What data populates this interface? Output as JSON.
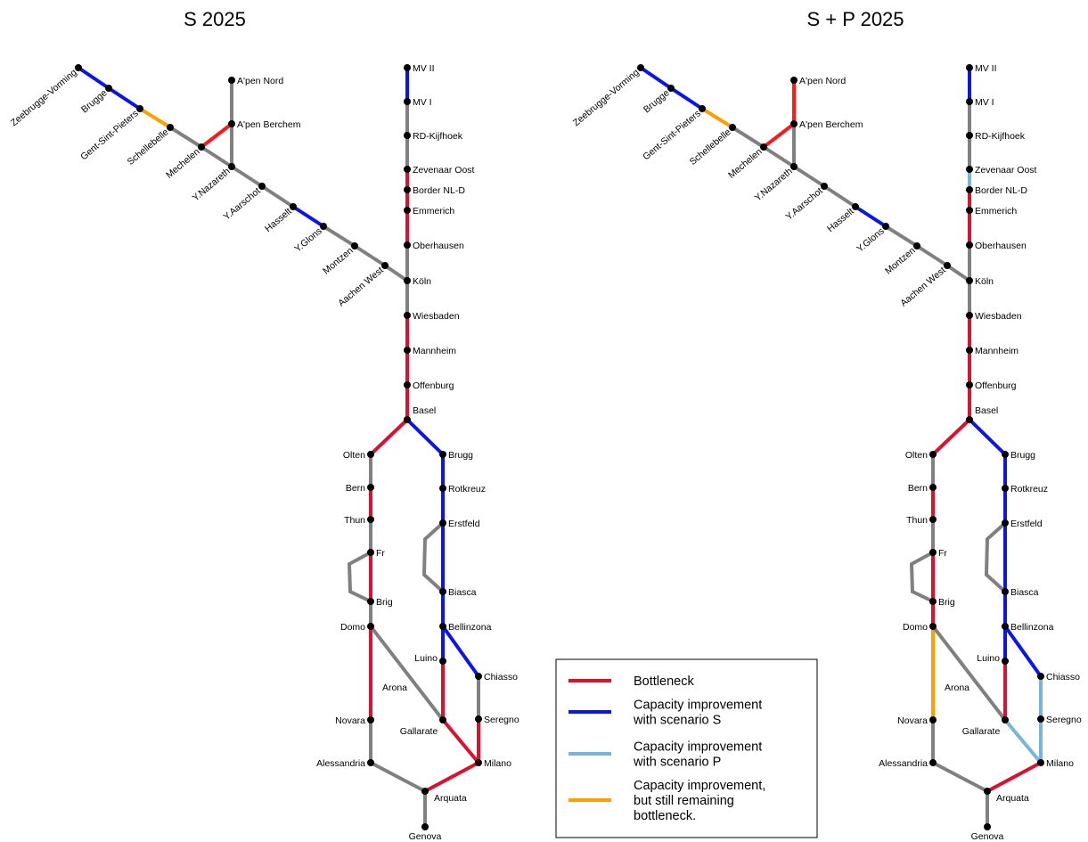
{
  "colors": {
    "bottleneck": "#d9122f",
    "improvement_s": "#0a14ec",
    "improvement_p": "#78b4dc",
    "partial": "#ffa000",
    "neutral": "#808080",
    "red": "#ff1a1a"
  },
  "legend": {
    "items": [
      {
        "key": "bottleneck",
        "label_lines": [
          "Bottleneck"
        ]
      },
      {
        "key": "improvement_s",
        "label_lines": [
          "Capacity improvement",
          "with scenario S"
        ]
      },
      {
        "key": "improvement_p",
        "label_lines": [
          "Capacity improvement",
          "with scenario P"
        ]
      },
      {
        "key": "partial",
        "label_lines": [
          "Capacity improvement,",
          "but still remaining",
          "bottleneck."
        ]
      }
    ]
  },
  "stations": {
    "zeebrugge": "Zeebrugge-Vorming",
    "brugge": "Brugge",
    "gent": "Gent-Sint-Pieters",
    "schellebelle": "Schellebelle",
    "mechelen": "Mechelen",
    "ynazareth": "Y.Nazareth",
    "yaarschot": "Y.Aarschot",
    "hasselt": "Hasselt",
    "yglons": "Y.Glons",
    "montzen": "Montzen",
    "aachen": "Aachen West",
    "apennord": "A'pen Nord",
    "apenberchem": "A'pen Berchem",
    "mv2": "MV II",
    "mv1": "MV I",
    "rd": "RD-Kijfhoek",
    "zevenaar": "Zevenaar Oost",
    "border": "Border NL-D",
    "emmerich": "Emmerich",
    "oberhausen": "Oberhausen",
    "koln": "Köln",
    "wiesbaden": "Wiesbaden",
    "mannheim": "Mannheim",
    "offenburg": "Offenburg",
    "basel": "Basel",
    "olten": "Olten",
    "bern": "Bern",
    "thun": "Thun",
    "fr": "Fr",
    "brig": "Brig",
    "domo": "Domo",
    "novara": "Novara",
    "alessandria": "Alessandria",
    "arquata": "Arquata",
    "genova": "Genova",
    "arona": "Arona",
    "gallarate": "Gallarate",
    "luino": "Luino",
    "brugg": "Brugg",
    "rotkreuz": "Rotkreuz",
    "erstfeld": "Erstfeld",
    "biasca": "Biasca",
    "bellinzona": "Bellinzona",
    "chiasso": "Chiasso",
    "seregno": "Seregno",
    "milano": "Milano"
  },
  "panels": [
    {
      "id": "s",
      "title": "S 2025",
      "segments": [
        {
          "from": "zeebrugge",
          "to": "brugge",
          "status": "improvement_s"
        },
        {
          "from": "brugge",
          "to": "gent",
          "status": "improvement_s"
        },
        {
          "from": "gent",
          "to": "schellebelle",
          "status": "partial"
        },
        {
          "from": "schellebelle",
          "to": "mechelen",
          "status": "neutral"
        },
        {
          "from": "mechelen",
          "to": "ynazareth",
          "status": "neutral"
        },
        {
          "from": "mechelen",
          "to": "apenberchem",
          "status": "red"
        },
        {
          "from": "apenberchem",
          "to": "apennord",
          "status": "neutral"
        },
        {
          "from": "apenberchem",
          "to": "ynazareth",
          "status": "neutral"
        },
        {
          "from": "ynazareth",
          "to": "yaarschot",
          "status": "neutral"
        },
        {
          "from": "yaarschot",
          "to": "hasselt",
          "status": "neutral"
        },
        {
          "from": "hasselt",
          "to": "yglons",
          "status": "improvement_s"
        },
        {
          "from": "yglons",
          "to": "montzen",
          "status": "neutral"
        },
        {
          "from": "montzen",
          "to": "aachen",
          "status": "neutral"
        },
        {
          "from": "aachen",
          "to": "koln",
          "status": "neutral"
        },
        {
          "from": "mv2",
          "to": "mv1",
          "status": "improvement_s"
        },
        {
          "from": "mv1",
          "to": "rd",
          "status": "neutral"
        },
        {
          "from": "rd",
          "to": "zevenaar",
          "status": "neutral"
        },
        {
          "from": "zevenaar",
          "to": "border",
          "status": "bottleneck"
        },
        {
          "from": "border",
          "to": "emmerich",
          "status": "bottleneck"
        },
        {
          "from": "emmerich",
          "to": "oberhausen",
          "status": "bottleneck"
        },
        {
          "from": "oberhausen",
          "to": "koln",
          "status": "neutral"
        },
        {
          "from": "koln",
          "to": "wiesbaden",
          "status": "neutral"
        },
        {
          "from": "wiesbaden",
          "to": "mannheim",
          "status": "bottleneck"
        },
        {
          "from": "mannheim",
          "to": "offenburg",
          "status": "bottleneck"
        },
        {
          "from": "offenburg",
          "to": "basel",
          "status": "bottleneck"
        },
        {
          "from": "basel",
          "to": "olten",
          "status": "bottleneck"
        },
        {
          "from": "olten",
          "to": "bern",
          "status": "neutral"
        },
        {
          "from": "bern",
          "to": "thun",
          "status": "bottleneck"
        },
        {
          "from": "thun",
          "to": "fr",
          "status": "neutral"
        },
        {
          "from": "fr",
          "to": "brig",
          "status": "bottleneck"
        },
        {
          "from": "fr",
          "to": "brig",
          "status": "neutral",
          "via": "westloop"
        },
        {
          "from": "brig",
          "to": "domo",
          "status": "neutral"
        },
        {
          "from": "domo",
          "to": "novara",
          "status": "bottleneck"
        },
        {
          "from": "novara",
          "to": "alessandria",
          "status": "neutral"
        },
        {
          "from": "alessandria",
          "to": "arquata",
          "status": "neutral"
        },
        {
          "from": "arquata",
          "to": "genova",
          "status": "neutral"
        },
        {
          "from": "arquata",
          "to": "milano",
          "status": "bottleneck"
        },
        {
          "from": "domo",
          "to": "gallarate",
          "status": "neutral"
        },
        {
          "from": "gallarate",
          "to": "milano",
          "status": "bottleneck"
        },
        {
          "from": "basel",
          "to": "brugg",
          "status": "improvement_s"
        },
        {
          "from": "brugg",
          "to": "rotkreuz",
          "status": "improvement_s"
        },
        {
          "from": "rotkreuz",
          "to": "erstfeld",
          "status": "improvement_s"
        },
        {
          "from": "erstfeld",
          "to": "biasca",
          "status": "improvement_s"
        },
        {
          "from": "erstfeld",
          "to": "biasca",
          "status": "neutral",
          "via": "eastloop"
        },
        {
          "from": "biasca",
          "to": "bellinzona",
          "status": "improvement_s"
        },
        {
          "from": "bellinzona",
          "to": "luino",
          "status": "improvement_s"
        },
        {
          "from": "luino",
          "to": "gallarate",
          "status": "bottleneck"
        },
        {
          "from": "bellinzona",
          "to": "chiasso",
          "status": "improvement_s"
        },
        {
          "from": "chiasso",
          "to": "seregno",
          "status": "neutral"
        },
        {
          "from": "seregno",
          "to": "milano",
          "status": "bottleneck"
        }
      ]
    },
    {
      "id": "sp",
      "title": "S + P 2025",
      "segments": [
        {
          "from": "zeebrugge",
          "to": "brugge",
          "status": "improvement_s"
        },
        {
          "from": "brugge",
          "to": "gent",
          "status": "improvement_s"
        },
        {
          "from": "gent",
          "to": "schellebelle",
          "status": "partial"
        },
        {
          "from": "schellebelle",
          "to": "mechelen",
          "status": "neutral"
        },
        {
          "from": "mechelen",
          "to": "ynazareth",
          "status": "neutral"
        },
        {
          "from": "mechelen",
          "to": "apenberchem",
          "status": "red"
        },
        {
          "from": "apenberchem",
          "to": "apennord",
          "status": "red"
        },
        {
          "from": "apenberchem",
          "to": "ynazareth",
          "status": "neutral"
        },
        {
          "from": "ynazareth",
          "to": "yaarschot",
          "status": "neutral"
        },
        {
          "from": "yaarschot",
          "to": "hasselt",
          "status": "neutral"
        },
        {
          "from": "hasselt",
          "to": "yglons",
          "status": "improvement_s"
        },
        {
          "from": "yglons",
          "to": "montzen",
          "status": "neutral"
        },
        {
          "from": "montzen",
          "to": "aachen",
          "status": "neutral"
        },
        {
          "from": "aachen",
          "to": "koln",
          "status": "neutral"
        },
        {
          "from": "mv2",
          "to": "mv1",
          "status": "improvement_s"
        },
        {
          "from": "mv1",
          "to": "rd",
          "status": "neutral"
        },
        {
          "from": "rd",
          "to": "zevenaar",
          "status": "neutral"
        },
        {
          "from": "zevenaar",
          "to": "border",
          "status": "improvement_p"
        },
        {
          "from": "border",
          "to": "emmerich",
          "status": "bottleneck"
        },
        {
          "from": "emmerich",
          "to": "oberhausen",
          "status": "bottleneck"
        },
        {
          "from": "oberhausen",
          "to": "koln",
          "status": "neutral"
        },
        {
          "from": "koln",
          "to": "wiesbaden",
          "status": "neutral"
        },
        {
          "from": "wiesbaden",
          "to": "mannheim",
          "status": "bottleneck"
        },
        {
          "from": "mannheim",
          "to": "offenburg",
          "status": "bottleneck"
        },
        {
          "from": "offenburg",
          "to": "basel",
          "status": "bottleneck"
        },
        {
          "from": "basel",
          "to": "olten",
          "status": "bottleneck"
        },
        {
          "from": "olten",
          "to": "bern",
          "status": "neutral"
        },
        {
          "from": "bern",
          "to": "thun",
          "status": "bottleneck"
        },
        {
          "from": "thun",
          "to": "fr",
          "status": "neutral"
        },
        {
          "from": "fr",
          "to": "brig",
          "status": "bottleneck"
        },
        {
          "from": "fr",
          "to": "brig",
          "status": "neutral",
          "via": "westloop"
        },
        {
          "from": "brig",
          "to": "domo",
          "status": "bottleneck"
        },
        {
          "from": "domo",
          "to": "novara",
          "status": "partial"
        },
        {
          "from": "novara",
          "to": "alessandria",
          "status": "neutral"
        },
        {
          "from": "alessandria",
          "to": "arquata",
          "status": "neutral"
        },
        {
          "from": "arquata",
          "to": "genova",
          "status": "neutral"
        },
        {
          "from": "arquata",
          "to": "milano",
          "status": "bottleneck"
        },
        {
          "from": "domo",
          "to": "gallarate",
          "status": "neutral"
        },
        {
          "from": "basel",
          "to": "brugg",
          "status": "improvement_s"
        },
        {
          "from": "brugg",
          "to": "rotkreuz",
          "status": "improvement_s"
        },
        {
          "from": "rotkreuz",
          "to": "erstfeld",
          "status": "improvement_s"
        },
        {
          "from": "erstfeld",
          "to": "biasca",
          "status": "improvement_s"
        },
        {
          "from": "erstfeld",
          "to": "biasca",
          "status": "neutral",
          "via": "eastloop"
        },
        {
          "from": "biasca",
          "to": "bellinzona",
          "status": "improvement_s"
        },
        {
          "from": "bellinzona",
          "to": "luino",
          "status": "improvement_s"
        },
        {
          "from": "luino",
          "to": "gallarate",
          "status": "bottleneck"
        },
        {
          "from": "bellinzona",
          "to": "chiasso",
          "status": "improvement_s"
        },
        {
          "from": "chiasso",
          "to": "seregno",
          "status": "improvement_p"
        },
        {
          "from": "seregno",
          "to": "milano",
          "status": "improvement_p"
        },
        {
          "from": "gallarate",
          "to": "milano",
          "status": "improvement_p"
        }
      ]
    }
  ]
}
